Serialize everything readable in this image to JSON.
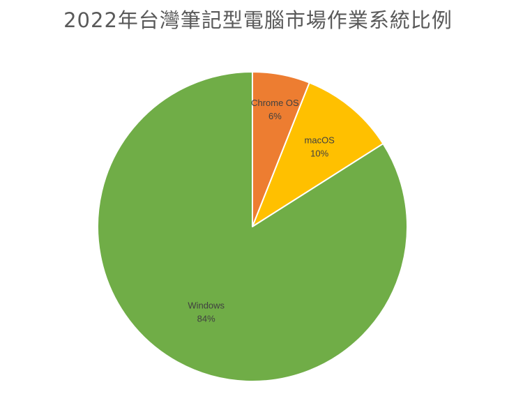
{
  "chart_data": {
    "type": "pie",
    "title": "2022年台灣筆記型電腦市場作業系統比例",
    "slices": [
      {
        "name": "Chrome OS",
        "value": 6,
        "label_pct": "6%",
        "color": "#ED7D31"
      },
      {
        "name": "macOS",
        "value": 10,
        "label_pct": "10%",
        "color": "#FFC000"
      },
      {
        "name": "Windows",
        "value": 84,
        "label_pct": "84%",
        "color": "#70AD47"
      }
    ],
    "legend": "none",
    "start_angle": "12 o'clock",
    "direction": "clockwise"
  }
}
